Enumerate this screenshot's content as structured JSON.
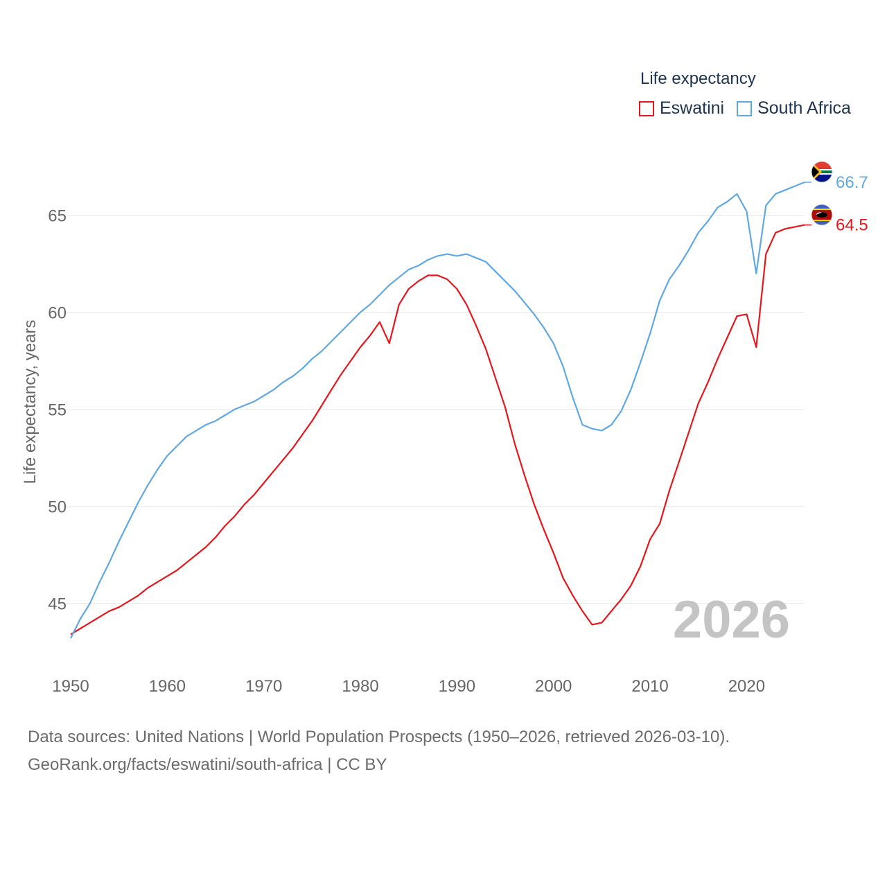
{
  "legend": {
    "title": "Life expectancy",
    "items": [
      {
        "name": "Eswatini",
        "color": "#e8151b"
      },
      {
        "name": "South Africa",
        "color": "#5fa8e4"
      }
    ]
  },
  "source": {
    "line1": "Data sources: United Nations | World Population Prospects (1950–2026, retrieved 2026-03-10).",
    "line2": "GeoRank.org/facts/eswatini/south-africa | CC BY"
  },
  "chart_data": {
    "type": "line",
    "title": "Life expectancy",
    "xlabel": "",
    "ylabel": "Life expectancy, years",
    "xlim": [
      1950,
      2026
    ],
    "ylim": [
      42.5,
      68
    ],
    "yticks": [
      45,
      50,
      55,
      60,
      65
    ],
    "xticks": [
      1950,
      1960,
      1970,
      1980,
      1990,
      2000,
      2010,
      2020
    ],
    "grid": true,
    "legend_position": "top-right",
    "current_year": "2026",
    "x": [
      1950,
      1951,
      1952,
      1953,
      1954,
      1955,
      1956,
      1957,
      1958,
      1959,
      1960,
      1961,
      1962,
      1963,
      1964,
      1965,
      1966,
      1967,
      1968,
      1969,
      1970,
      1971,
      1972,
      1973,
      1974,
      1975,
      1976,
      1977,
      1978,
      1979,
      1980,
      1981,
      1982,
      1983,
      1984,
      1985,
      1986,
      1987,
      1988,
      1989,
      1990,
      1991,
      1992,
      1993,
      1994,
      1995,
      1996,
      1997,
      1998,
      1999,
      2000,
      2001,
      2002,
      2003,
      2004,
      2005,
      2006,
      2007,
      2008,
      2009,
      2010,
      2011,
      2012,
      2013,
      2014,
      2015,
      2016,
      2017,
      2018,
      2019,
      2020,
      2021,
      2022,
      2023,
      2024,
      2025,
      2026
    ],
    "series": [
      {
        "name": "Eswatini",
        "color": "#e8151b",
        "end_label": "64.5",
        "values": [
          43.4,
          43.7,
          44.0,
          44.3,
          44.6,
          44.8,
          45.1,
          45.4,
          45.8,
          46.1,
          46.4,
          46.7,
          47.1,
          47.5,
          47.9,
          48.4,
          49.0,
          49.5,
          50.1,
          50.6,
          51.2,
          51.8,
          52.4,
          53.0,
          53.7,
          54.4,
          55.2,
          56.0,
          56.8,
          57.5,
          58.2,
          58.8,
          59.5,
          58.4,
          60.4,
          61.2,
          61.6,
          61.9,
          61.9,
          61.7,
          61.2,
          60.4,
          59.3,
          58.1,
          56.6,
          55.1,
          53.2,
          51.6,
          50.1,
          48.8,
          47.6,
          46.3,
          45.4,
          44.6,
          43.9,
          44.0,
          44.6,
          45.2,
          45.9,
          46.9,
          48.3,
          49.1,
          50.8,
          52.3,
          53.8,
          55.3,
          56.4,
          57.6,
          58.7,
          59.8,
          59.9,
          58.2,
          63.0,
          64.1,
          64.3,
          64.4,
          64.5
        ]
      },
      {
        "name": "South Africa",
        "color": "#5fa8e4",
        "end_label": "66.7",
        "values": [
          43.2,
          44.2,
          45.0,
          46.1,
          47.1,
          48.2,
          49.2,
          50.2,
          51.1,
          51.9,
          52.6,
          53.1,
          53.6,
          53.9,
          54.2,
          54.4,
          54.7,
          55.0,
          55.2,
          55.4,
          55.7,
          56.0,
          56.4,
          56.7,
          57.1,
          57.6,
          58.0,
          58.5,
          59.0,
          59.5,
          60.0,
          60.4,
          60.9,
          61.4,
          61.8,
          62.2,
          62.4,
          62.7,
          62.9,
          63.0,
          62.9,
          63.0,
          62.8,
          62.6,
          62.1,
          61.6,
          61.1,
          60.5,
          59.9,
          59.2,
          58.4,
          57.2,
          55.6,
          54.2,
          54.0,
          53.9,
          54.2,
          54.9,
          56.0,
          57.4,
          58.9,
          60.6,
          61.7,
          62.4,
          63.2,
          64.1,
          64.7,
          65.4,
          65.7,
          66.1,
          65.2,
          62.0,
          65.5,
          66.1,
          66.3,
          66.5,
          66.7
        ]
      }
    ]
  }
}
